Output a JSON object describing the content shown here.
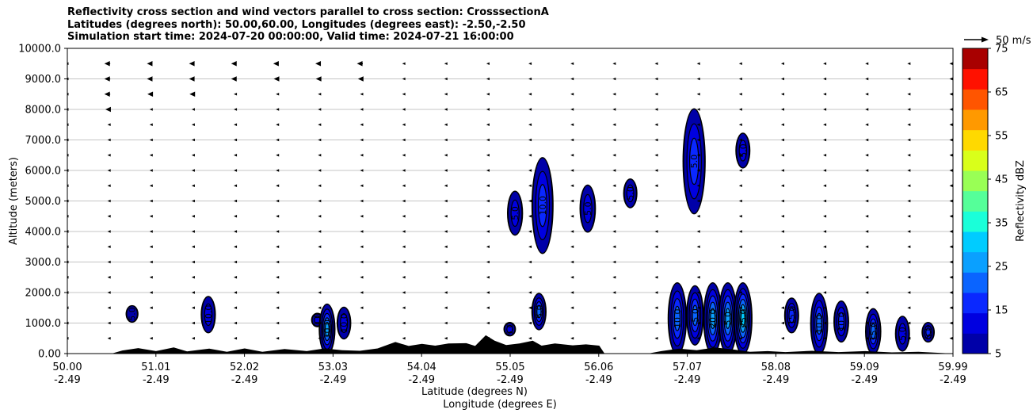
{
  "title": {
    "line1": "Reflectivity cross section and wind vectors parallel to cross section: CrosssectionA",
    "line2": "Latitudes (degrees north): 50.00,60.00, Longitudes (degrees east): -2.50,-2.50",
    "line3": "Simulation start time: 2024-07-20 00:00:00, Valid time: 2024-07-21 16:00:00"
  },
  "chart_data": {
    "type": "contour",
    "ylabel": "Altitude (meters)",
    "xlabel_line1": "Latitude (degrees N)",
    "xlabel_line2": "Longitude (degrees E)",
    "ylim": [
      0,
      10000
    ],
    "xlim": [
      50.0,
      59.99
    ],
    "yticks": [
      "0.00",
      "1000.0",
      "2000.0",
      "3000.0",
      "4000.0",
      "5000.0",
      "6000.0",
      "7000.0",
      "8000.0",
      "9000.0",
      "10000.0"
    ],
    "xticks_lat": [
      "50.00",
      "51.01",
      "52.02",
      "53.03",
      "54.04",
      "55.05",
      "56.06",
      "57.07",
      "58.08",
      "59.09",
      "59.99"
    ],
    "xticks_lon": [
      "-2.49",
      "-2.49",
      "-2.49",
      "-2.49",
      "-2.49",
      "-2.49",
      "-2.49",
      "-2.49",
      "-2.49",
      "-2.49",
      "-2.49"
    ],
    "grid": "horizontal",
    "quiver_key": "50 m/s",
    "colorbar": {
      "label": "Reflectivity dBZ",
      "ticks": [
        "5",
        "15",
        "25",
        "35",
        "45",
        "55",
        "65",
        "75"
      ],
      "levels": [
        5,
        10,
        15,
        20,
        25,
        30,
        35,
        40,
        45,
        50,
        55,
        60,
        65,
        70,
        75
      ],
      "colors": [
        "#0000a8",
        "#0000e0",
        "#0a28ff",
        "#0a64ff",
        "#0aa0ff",
        "#00ccff",
        "#1affd9",
        "#55ff99",
        "#99ff55",
        "#d9ff1a",
        "#ffd900",
        "#ff9900",
        "#ff5500",
        "#ff1100",
        "#a80000"
      ]
    },
    "cells": [
      {
        "lat": 50.73,
        "z0": 1050,
        "z1": 1550,
        "max_dbz": 5,
        "label": "5.0"
      },
      {
        "lat": 51.59,
        "z0": 700,
        "z1": 1850,
        "max_dbz": 10,
        "label": "10.0"
      },
      {
        "lat": 52.82,
        "z0": 900,
        "z1": 1300,
        "max_dbz": 10,
        "label": "0.0"
      },
      {
        "lat": 52.93,
        "z0": 0,
        "z1": 1600,
        "max_dbz": 25,
        "label": "10.0"
      },
      {
        "lat": 53.12,
        "z0": 500,
        "z1": 1500,
        "max_dbz": 10,
        "label": "10.0"
      },
      {
        "lat": 54.99,
        "z0": 600,
        "z1": 1000,
        "max_dbz": 10,
        "label": "5.0"
      },
      {
        "lat": 55.32,
        "z0": 800,
        "z1": 1950,
        "max_dbz": 20,
        "label": "5.0"
      },
      {
        "lat": 55.05,
        "z0": 3900,
        "z1": 5300,
        "max_dbz": 10,
        "label": "5.0"
      },
      {
        "lat": 55.36,
        "z0": 3300,
        "z1": 6400,
        "max_dbz": 15,
        "label": "10.0"
      },
      {
        "lat": 55.87,
        "z0": 4000,
        "z1": 5500,
        "max_dbz": 10,
        "label": "5.0"
      },
      {
        "lat": 56.35,
        "z0": 4800,
        "z1": 5700,
        "max_dbz": 10,
        "label": "5.0"
      },
      {
        "lat": 57.07,
        "z0": 4600,
        "z1": 8000,
        "max_dbz": 15,
        "label": "5.0"
      },
      {
        "lat": 57.62,
        "z0": 6100,
        "z1": 7200,
        "max_dbz": 10,
        "label": "5.0"
      },
      {
        "lat": 56.88,
        "z0": 0,
        "z1": 2300,
        "max_dbz": 20,
        "label": "10.0"
      },
      {
        "lat": 57.08,
        "z0": 300,
        "z1": 2200,
        "max_dbz": 20,
        "label": "5.0"
      },
      {
        "lat": 57.28,
        "z0": 0,
        "z1": 2300,
        "max_dbz": 25,
        "label": "20.0"
      },
      {
        "lat": 57.45,
        "z0": 0,
        "z1": 2300,
        "max_dbz": 25,
        "label": "5.0"
      },
      {
        "lat": 57.62,
        "z0": 0,
        "z1": 2300,
        "max_dbz": 30,
        "label": "25.0"
      },
      {
        "lat": 58.17,
        "z0": 700,
        "z1": 1800,
        "max_dbz": 15,
        "label": "15.0"
      },
      {
        "lat": 58.48,
        "z0": 0,
        "z1": 1950,
        "max_dbz": 20,
        "label": "10.0"
      },
      {
        "lat": 58.73,
        "z0": 400,
        "z1": 1700,
        "max_dbz": 15,
        "label": "10.0"
      },
      {
        "lat": 59.09,
        "z0": 0,
        "z1": 1450,
        "max_dbz": 20,
        "label": "15.0"
      },
      {
        "lat": 59.42,
        "z0": 100,
        "z1": 1200,
        "max_dbz": 10,
        "label": "5.0"
      },
      {
        "lat": 59.71,
        "z0": 400,
        "z1": 1000,
        "max_dbz": 15,
        "label": "5.0"
      }
    ],
    "terrain": {
      "lat": [
        50.0,
        50.5,
        50.62,
        50.8,
        51.0,
        51.2,
        51.35,
        51.6,
        51.8,
        52.0,
        52.2,
        52.45,
        52.7,
        52.9,
        53.1,
        53.3,
        53.5,
        53.7,
        53.85,
        54.0,
        54.15,
        54.3,
        54.5,
        54.6,
        54.72,
        54.82,
        54.95,
        55.1,
        55.25,
        55.35,
        55.5,
        55.7,
        55.85,
        56.0,
        56.06,
        56.3,
        56.55,
        56.7,
        56.9,
        57.1,
        57.3,
        57.5,
        57.7,
        57.9,
        58.1,
        58.4,
        58.7,
        59.0,
        59.3,
        59.6,
        59.99
      ],
      "z": [
        0,
        0,
        100,
        180,
        80,
        200,
        70,
        160,
        60,
        170,
        60,
        150,
        80,
        170,
        110,
        90,
        170,
        380,
        250,
        320,
        260,
        330,
        340,
        250,
        600,
        420,
        280,
        330,
        420,
        260,
        330,
        270,
        300,
        260,
        0,
        0,
        0,
        80,
        160,
        110,
        200,
        140,
        60,
        80,
        50,
        90,
        50,
        80,
        40,
        60,
        0
      ]
    },
    "wind_vectors_u_ms": [
      {
        "z": 9500,
        "u": [
          -2,
          -12,
          -11,
          -11,
          -11,
          -11,
          -11,
          -12,
          -8,
          -5,
          -2,
          -2,
          -1,
          -1,
          -1,
          -1,
          -1,
          -1,
          -1,
          -1,
          -1,
          -1
        ]
      },
      {
        "z": 9000,
        "u": [
          -2,
          -12,
          -11,
          -11,
          -11,
          -10,
          -10,
          -10,
          -7,
          -4,
          -2,
          -1,
          -1,
          -1,
          -1,
          -1,
          -1,
          -1,
          -1,
          -1,
          -1,
          -1
        ]
      },
      {
        "z": 8500,
        "u": [
          -2,
          -12,
          -10,
          -10,
          -9,
          -9,
          -9,
          -9,
          -6,
          -3,
          -2,
          -1,
          -1,
          -1,
          -1,
          -1,
          -1,
          -1,
          -1,
          -1,
          -1,
          -1
        ]
      },
      {
        "z": 8000,
        "u": [
          -1,
          -10,
          -9,
          -8,
          -7,
          -7,
          -6,
          -6,
          -4,
          -2,
          -1,
          -1,
          -1,
          -1,
          -1,
          -1,
          -1,
          -1,
          -1,
          -1,
          -1,
          -1
        ]
      },
      {
        "z": 7500,
        "u": [
          -1,
          -8,
          -7,
          -5,
          -4,
          -4,
          -3,
          -3,
          -2,
          -2,
          -1,
          -1,
          -1,
          -1,
          -1,
          -1,
          -1,
          -1,
          -1,
          -1,
          -1,
          -1
        ]
      },
      {
        "z": 7000,
        "u": [
          -1,
          -6,
          -5,
          -4,
          -3,
          -2,
          -2,
          -2,
          -2,
          -1,
          -1,
          -1,
          -1,
          -1,
          -1,
          -1,
          -1,
          -1,
          -1,
          -1,
          -1,
          -1
        ]
      },
      {
        "z": 6500,
        "u": [
          -1,
          -4,
          -3,
          -2,
          -2,
          -2,
          -2,
          -2,
          -1,
          -1,
          -1,
          -1,
          -1,
          -1,
          -1,
          -1,
          -1,
          -1,
          -1,
          -1,
          -1,
          -1
        ]
      },
      {
        "z": 6000,
        "u": [
          -1,
          -2,
          -2,
          -2,
          -2,
          -2,
          -2,
          -2,
          -1,
          -1,
          -1,
          -1,
          -1,
          -1,
          -1,
          -1,
          -1,
          -1,
          -1,
          -1,
          -1,
          -1
        ]
      },
      {
        "z": 5500,
        "u": [
          -1,
          -2,
          -2,
          -2,
          -2,
          -2,
          -2,
          -2,
          -1,
          -1,
          -1,
          -1,
          -1,
          -1,
          -1,
          -1,
          -1,
          -1,
          -1,
          -1,
          -1,
          -1
        ]
      },
      {
        "z": 5000,
        "u": [
          -1,
          -1,
          -1,
          -1,
          -1,
          -1,
          -1,
          -1,
          -1,
          -1,
          -1,
          -1,
          -1,
          -1,
          -1,
          -1,
          -1,
          -1,
          -1,
          -1,
          -1,
          -1
        ]
      },
      {
        "z": 4500,
        "u": [
          -1,
          -1,
          -1,
          -1,
          -1,
          -1,
          -1,
          -1,
          -1,
          -1,
          -1,
          -1,
          -1,
          -1,
          -1,
          -1,
          -1,
          -1,
          -1,
          -1,
          -1,
          -1
        ]
      },
      {
        "z": 4000,
        "u": [
          -1,
          -1,
          -1,
          -1,
          -1,
          -1,
          -1,
          -1,
          -1,
          -1,
          -1,
          -1,
          -1,
          -1,
          -1,
          -1,
          -1,
          -1,
          -1,
          -1,
          -1,
          -1
        ]
      },
      {
        "z": 3500,
        "u": [
          -1,
          -1,
          -1,
          -1,
          -1,
          -1,
          -1,
          -1,
          -1,
          -1,
          -1,
          -1,
          -1,
          -1,
          -1,
          -1,
          -1,
          -1,
          -1,
          -1,
          -1,
          -1
        ]
      },
      {
        "z": 3000,
        "u": [
          -1,
          -1,
          -1,
          -1,
          -1,
          -1,
          -1,
          -1,
          -1,
          -1,
          -1,
          -1,
          -1,
          -1,
          -1,
          -1,
          -1,
          -1,
          -1,
          -1,
          -1,
          -1
        ]
      },
      {
        "z": 2500,
        "u": [
          -1,
          -1,
          -1,
          -1,
          -1,
          -1,
          -1,
          -1,
          -1,
          -1,
          -1,
          -1,
          -1,
          -1,
          -1,
          -1,
          -1,
          -1,
          -1,
          -1,
          -1,
          -1
        ]
      },
      {
        "z": 2000,
        "u": [
          -1,
          -1,
          -1,
          -1,
          -1,
          -1,
          -1,
          -1,
          -1,
          -1,
          -1,
          -1,
          -1,
          -1,
          -1,
          -1,
          -1,
          -1,
          -1,
          -1,
          -1,
          -1
        ]
      },
      {
        "z": 1500,
        "u": [
          -1,
          -1,
          -1,
          -1,
          -1,
          -1,
          -1,
          -1,
          -1,
          -1,
          -1,
          -1,
          -1,
          -1,
          -1,
          -1,
          -1,
          -1,
          -1,
          -1,
          -1,
          -1
        ]
      },
      {
        "z": 1000,
        "u": [
          -1,
          -1,
          -1,
          -1,
          -1,
          -1,
          -1,
          -1,
          -1,
          -1,
          -1,
          -1,
          -1,
          -1,
          -1,
          -1,
          -1,
          -1,
          -1,
          -1,
          -1,
          -1
        ]
      },
      {
        "z": 500,
        "u": [
          -1,
          -1,
          -1,
          -1,
          -1,
          -1,
          -1,
          -1,
          -1,
          -1,
          -1,
          -1,
          -1,
          -1,
          -1,
          -1,
          -1,
          -1,
          -1,
          -1,
          -1,
          -1
        ]
      }
    ]
  }
}
